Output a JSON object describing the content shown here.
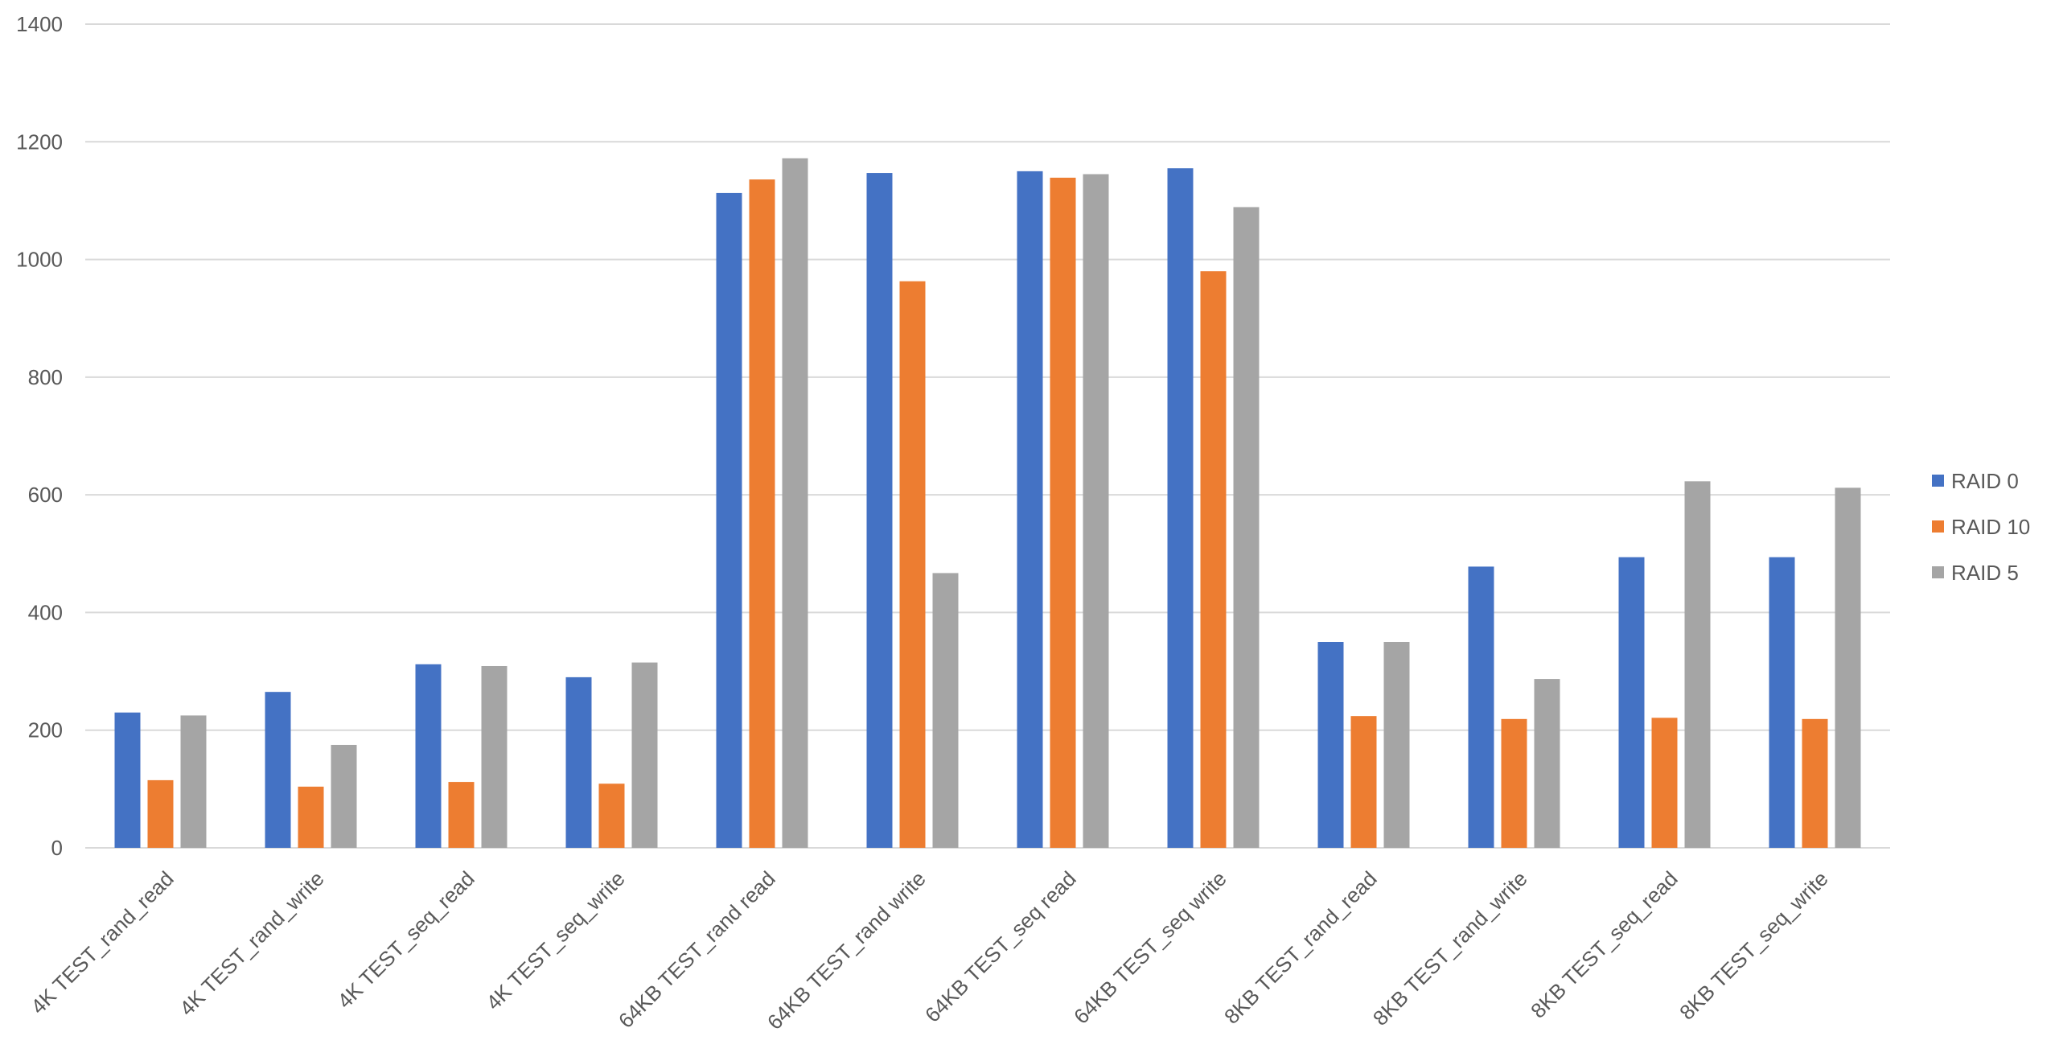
{
  "chart_data": {
    "type": "bar",
    "title": "",
    "xlabel": "",
    "ylabel": "",
    "ylim": [
      0,
      1400
    ],
    "yticks": [
      0,
      200,
      400,
      600,
      800,
      1000,
      1200,
      1400
    ],
    "grid": true,
    "legend_position": "right",
    "categories": [
      "4K TEST_rand_read",
      "4K TEST_rand_write",
      "4K TEST_seq_read",
      "4K TEST_seq_write",
      "64KB TEST_rand read",
      "64KB TEST_rand write",
      "64KB TEST_seq read",
      "64KB TEST_seq write",
      "8KB TEST_rand_read",
      "8KB TEST_rand_write",
      "8KB TEST_seq_read",
      "8KB TEST_seq_write"
    ],
    "series": [
      {
        "name": "RAID 0",
        "color": "#4472c4",
        "values": [
          230,
          265,
          312,
          290,
          1113,
          1147,
          1150,
          1155,
          350,
          478,
          494,
          494
        ]
      },
      {
        "name": "RAID 10",
        "color": "#ed7d31",
        "values": [
          115,
          104,
          112,
          109,
          1136,
          963,
          1139,
          980,
          224,
          219,
          221,
          219
        ]
      },
      {
        "name": "RAID 5",
        "color": "#a5a5a5",
        "values": [
          225,
          175,
          309,
          315,
          1172,
          467,
          1145,
          1089,
          350,
          287,
          623,
          612
        ]
      }
    ]
  }
}
